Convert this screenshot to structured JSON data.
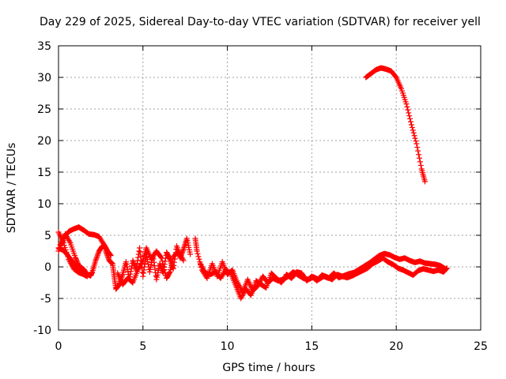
{
  "chart_data": {
    "type": "scatter",
    "title": "Day 229 of 2025, Sidereal Day-to-day VTEC variation (SDTVAR) for receiver yell",
    "xlabel": "GPS time / hours",
    "ylabel": "SDTVAR / TECUs",
    "xlim": [
      0,
      25
    ],
    "ylim": [
      -10,
      35
    ],
    "xticks": [
      0,
      5,
      10,
      15,
      20,
      25
    ],
    "yticks": [
      -10,
      -5,
      0,
      5,
      10,
      15,
      20,
      25,
      30,
      35
    ],
    "grid": true,
    "marker": "+",
    "color": "#ff0000",
    "series": [
      {
        "name": "SDTVAR",
        "traces": [
          [
            [
              0.0,
              5.5
            ],
            [
              0.3,
              3.8
            ],
            [
              0.6,
              1.2
            ],
            [
              0.9,
              -0.3
            ],
            [
              1.2,
              -0.9
            ],
            [
              1.5,
              -1.2
            ],
            [
              1.7,
              -1.5
            ]
          ],
          [
            [
              0.0,
              2.5
            ],
            [
              0.3,
              4.5
            ],
            [
              0.6,
              5.6
            ],
            [
              0.9,
              6.0
            ],
            [
              1.2,
              6.3
            ],
            [
              1.5,
              5.8
            ],
            [
              1.8,
              5.2
            ],
            [
              2.1,
              5.1
            ],
            [
              2.4,
              4.8
            ],
            [
              2.7,
              3.5
            ],
            [
              2.9,
              2.5
            ],
            [
              3.1,
              1.8
            ]
          ],
          [
            [
              0.1,
              3.5
            ],
            [
              0.4,
              5.2
            ],
            [
              0.7,
              3.8
            ],
            [
              1.0,
              1.5
            ],
            [
              1.2,
              0.2
            ],
            [
              1.5,
              -0.4
            ],
            [
              1.7,
              -1.2
            ],
            [
              1.9,
              -1.4
            ],
            [
              2.0,
              -0.8
            ],
            [
              2.2,
              1.0
            ],
            [
              2.4,
              2.5
            ],
            [
              2.6,
              3.3
            ],
            [
              2.8,
              3.0
            ]
          ],
          [
            [
              0.0,
              3.0
            ],
            [
              0.3,
              2.6
            ],
            [
              0.5,
              2.0
            ],
            [
              0.8,
              0.9
            ],
            [
              1.1,
              0.1
            ],
            [
              1.4,
              -0.6
            ],
            [
              1.6,
              -1.0
            ]
          ],
          [
            [
              2.8,
              2.5
            ],
            [
              3.0,
              1.0
            ],
            [
              3.2,
              0.5
            ],
            [
              3.3,
              -1.5
            ],
            [
              3.4,
              -3.5
            ],
            [
              3.6,
              -2.8
            ],
            [
              3.8,
              -1.2
            ],
            [
              4.0,
              0.8
            ],
            [
              4.2,
              -2.0
            ],
            [
              4.4,
              1.0
            ],
            [
              4.6,
              -0.5
            ],
            [
              4.8,
              3.0
            ],
            [
              5.0,
              -1.5
            ],
            [
              5.2,
              2.0
            ],
            [
              5.4,
              -0.8
            ],
            [
              5.6,
              1.8
            ],
            [
              5.8,
              -2.0
            ],
            [
              6.0,
              0.5
            ],
            [
              6.2,
              -1.0
            ],
            [
              6.4,
              2.3
            ],
            [
              6.6,
              1.2
            ],
            [
              6.8,
              -0.3
            ],
            [
              7.0,
              3.3
            ],
            [
              7.2,
              1.4
            ],
            [
              7.4,
              2.8
            ],
            [
              7.6,
              4.5
            ],
            [
              7.8,
              2.0
            ]
          ],
          [
            [
              3.5,
              -1.0
            ],
            [
              3.8,
              -2.8
            ],
            [
              4.1,
              -1.8
            ],
            [
              4.4,
              -2.5
            ],
            [
              4.7,
              -0.5
            ],
            [
              5.0,
              1.0
            ],
            [
              5.2,
              3.0
            ],
            [
              5.5,
              1.2
            ],
            [
              5.8,
              2.5
            ],
            [
              6.1,
              1.4
            ],
            [
              6.4,
              -1.8
            ],
            [
              6.6,
              -0.8
            ],
            [
              6.8,
              1.6
            ],
            [
              7.1,
              2.5
            ],
            [
              7.4,
              1.0
            ]
          ],
          [
            [
              8.1,
              4.5
            ],
            [
              8.2,
              2.5
            ],
            [
              8.5,
              -0.5
            ],
            [
              8.8,
              -1.8
            ],
            [
              9.1,
              0.5
            ],
            [
              9.4,
              -1.5
            ],
            [
              9.7,
              0.8
            ],
            [
              10.0,
              -1.2
            ],
            [
              10.3,
              -0.5
            ],
            [
              10.6,
              -2.5
            ],
            [
              10.9,
              -4.0
            ],
            [
              11.2,
              -2.0
            ],
            [
              11.5,
              -3.8
            ],
            [
              11.8,
              -3.0
            ],
            [
              12.1,
              -1.5
            ],
            [
              12.4,
              -2.5
            ],
            [
              12.7,
              -1.8
            ],
            [
              13.0,
              -2.2
            ],
            [
              13.3,
              -2.0
            ],
            [
              13.6,
              -1.5
            ],
            [
              13.9,
              -0.8
            ],
            [
              14.2,
              -1.3
            ],
            [
              14.5,
              -1.8
            ],
            [
              14.8,
              -2.0
            ],
            [
              15.1,
              -1.6
            ],
            [
              15.4,
              -2.0
            ],
            [
              15.7,
              -1.5
            ],
            [
              16.0,
              -1.8
            ],
            [
              16.3,
              -1.0
            ],
            [
              16.6,
              -1.7
            ],
            [
              16.9,
              -1.4
            ],
            [
              17.2,
              -1.1
            ],
            [
              17.5,
              -0.9
            ],
            [
              17.8,
              -0.4
            ],
            [
              18.1,
              0.1
            ],
            [
              18.4,
              0.6
            ],
            [
              18.7,
              1.2
            ],
            [
              19.0,
              1.8
            ],
            [
              19.3,
              2.1
            ],
            [
              19.6,
              1.9
            ],
            [
              19.9,
              1.5
            ],
            [
              20.2,
              1.2
            ],
            [
              20.5,
              1.4
            ],
            [
              20.8,
              1.0
            ],
            [
              21.1,
              0.7
            ],
            [
              21.4,
              0.9
            ],
            [
              21.7,
              0.6
            ],
            [
              22.0,
              0.5
            ],
            [
              22.3,
              0.4
            ],
            [
              22.6,
              0.2
            ],
            [
              22.9,
              -0.3
            ]
          ],
          [
            [
              8.4,
              0.5
            ],
            [
              8.7,
              -1.0
            ],
            [
              9.0,
              -1.2
            ],
            [
              9.3,
              -0.8
            ],
            [
              9.6,
              -1.8
            ],
            [
              9.9,
              -0.5
            ],
            [
              10.2,
              -1.0
            ],
            [
              10.5,
              -3.0
            ],
            [
              10.8,
              -5.0
            ],
            [
              11.1,
              -3.5
            ],
            [
              11.4,
              -4.5
            ],
            [
              11.7,
              -2.2
            ],
            [
              12.0,
              -2.8
            ],
            [
              12.3,
              -3.3
            ],
            [
              12.6,
              -1.0
            ],
            [
              12.9,
              -1.8
            ],
            [
              13.2,
              -2.5
            ],
            [
              13.5,
              -1.2
            ],
            [
              13.8,
              -1.8
            ],
            [
              14.1,
              -0.8
            ],
            [
              14.4,
              -1.0
            ],
            [
              14.7,
              -2.2
            ],
            [
              15.0,
              -1.5
            ],
            [
              15.3,
              -2.2
            ],
            [
              15.6,
              -1.3
            ],
            [
              15.9,
              -1.6
            ],
            [
              16.2,
              -2.0
            ],
            [
              16.5,
              -1.2
            ],
            [
              16.8,
              -1.5
            ],
            [
              17.1,
              -1.7
            ],
            [
              17.4,
              -1.4
            ],
            [
              17.7,
              -1.0
            ],
            [
              18.0,
              -0.6
            ],
            [
              18.3,
              -0.2
            ],
            [
              18.6,
              0.5
            ],
            [
              18.9,
              0.9
            ],
            [
              19.2,
              1.4
            ],
            [
              19.5,
              0.8
            ],
            [
              19.8,
              0.4
            ],
            [
              20.1,
              -0.2
            ],
            [
              20.4,
              -0.5
            ],
            [
              20.7,
              -0.9
            ],
            [
              21.0,
              -1.3
            ],
            [
              21.3,
              -0.6
            ],
            [
              21.6,
              -0.3
            ],
            [
              21.9,
              -0.5
            ],
            [
              22.2,
              -0.7
            ],
            [
              22.5,
              -0.5
            ],
            [
              22.8,
              -0.8
            ],
            [
              23.0,
              -0.2
            ]
          ],
          [
            [
              18.2,
              30.0
            ],
            [
              18.5,
              30.6
            ],
            [
              18.8,
              31.2
            ],
            [
              19.1,
              31.5
            ],
            [
              19.4,
              31.3
            ],
            [
              19.7,
              31.0
            ],
            [
              20.0,
              30.0
            ],
            [
              20.3,
              28.2
            ],
            [
              20.6,
              25.8
            ],
            [
              20.9,
              22.5
            ],
            [
              21.2,
              19.5
            ],
            [
              21.5,
              15.5
            ],
            [
              21.7,
              13.5
            ]
          ]
        ]
      }
    ]
  }
}
